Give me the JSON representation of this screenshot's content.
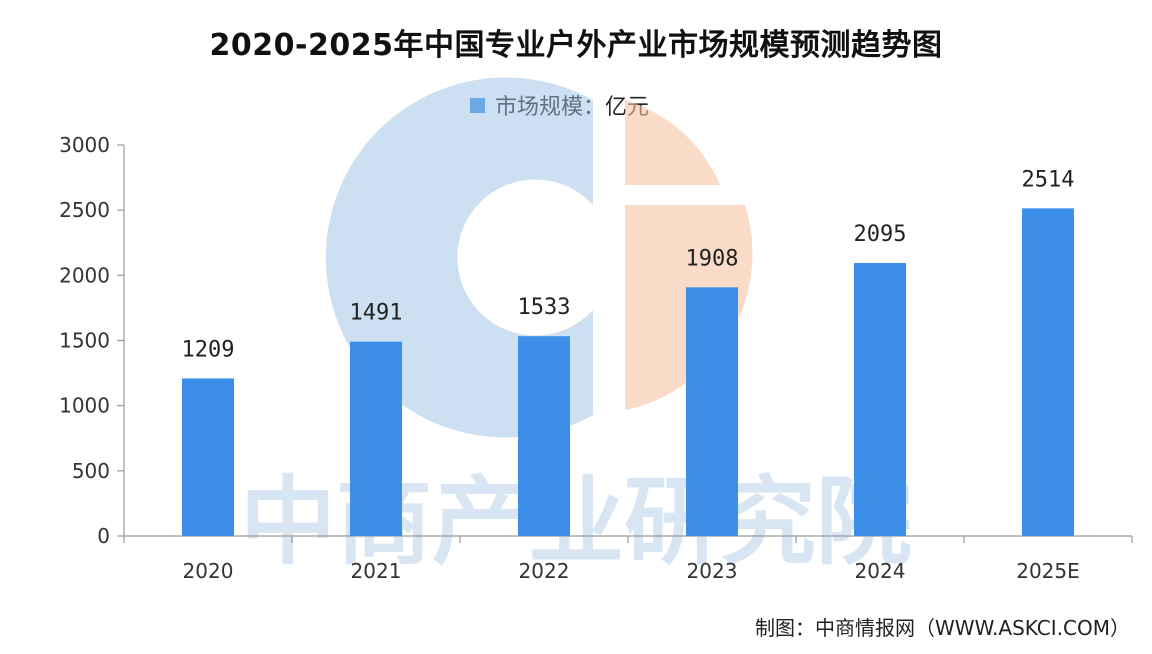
{
  "page": {
    "source_note": "制图：中商情报网（WWW.ASKCI.COM）",
    "watermark_text": "中商产业研究院"
  },
  "colors": {
    "bar": "#3c8ee8",
    "axis": "#9a9a9a",
    "watermark_blue": "#9cc1e4",
    "watermark_orange": "#f5c3a3"
  },
  "chart_data": {
    "type": "bar",
    "title": "2020-2025年中国专业户外产业市场规模预测趋势图",
    "legend": {
      "label": "市场规模：亿元",
      "placement": "top-center"
    },
    "categories": [
      "2020",
      "2021",
      "2022",
      "2023",
      "2024",
      "2025E"
    ],
    "series": [
      {
        "name": "市场规模：亿元",
        "values": [
          1209,
          1491,
          1533,
          1908,
          2095,
          2514
        ]
      }
    ],
    "data_labels": [
      "1209",
      "1491",
      "1533",
      "1908",
      "2095",
      "2514"
    ],
    "ylim": [
      0,
      3000
    ],
    "yticks": [
      0,
      500,
      1000,
      1500,
      2000,
      2500,
      3000
    ],
    "grid": false
  }
}
